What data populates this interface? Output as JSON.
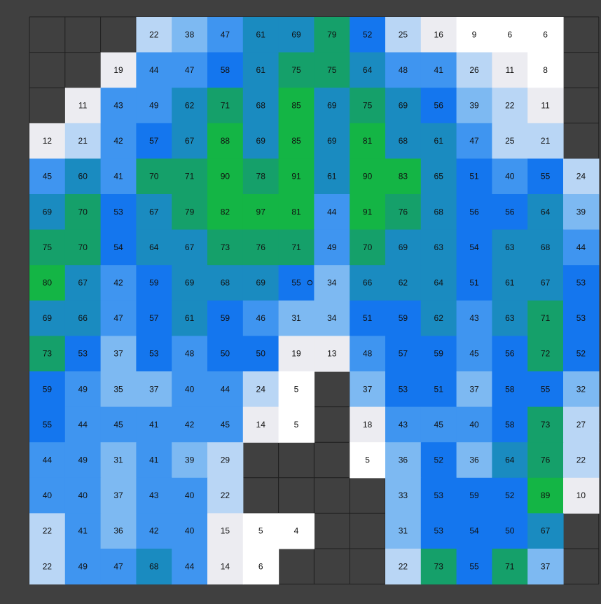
{
  "colors": {
    "background": "#404040",
    "grid_line": "#1e1e1e",
    "band_0": "#ffffff",
    "band_1": "#ececf1",
    "band_2": "#b9d6f5",
    "band_3": "#7db9f2",
    "band_4": "#3f95f0",
    "band_5": "#1476ee",
    "band_6": "#1a8bc0",
    "band_7": "#15a06a",
    "band_8": "#14b545",
    "label": "#111111"
  },
  "marker": {
    "symbol": "o",
    "row": 7,
    "after_col": 8
  },
  "chart_data": {
    "type": "heatmap",
    "title": "",
    "rows": 16,
    "cols": 16,
    "thresholds": [
      0,
      10,
      20,
      30,
      40,
      50,
      60,
      70,
      80,
      90
    ],
    "grid": [
      [
        null,
        null,
        null,
        22,
        38,
        47,
        61,
        69,
        79,
        52,
        25,
        16,
        9,
        6,
        6,
        null
      ],
      [
        null,
        null,
        19,
        44,
        47,
        58,
        61,
        75,
        75,
        64,
        48,
        41,
        26,
        11,
        8,
        null
      ],
      [
        null,
        11,
        43,
        49,
        62,
        71,
        68,
        85,
        69,
        75,
        69,
        56,
        39,
        22,
        11,
        null
      ],
      [
        12,
        21,
        42,
        57,
        67,
        88,
        69,
        85,
        69,
        81,
        68,
        61,
        47,
        25,
        21,
        null
      ],
      [
        45,
        60,
        41,
        70,
        71,
        90,
        78,
        91,
        61,
        90,
        83,
        65,
        51,
        40,
        55,
        24
      ],
      [
        69,
        70,
        53,
        67,
        79,
        82,
        97,
        81,
        44,
        91,
        76,
        68,
        56,
        56,
        64,
        39
      ],
      [
        75,
        70,
        54,
        64,
        67,
        73,
        76,
        71,
        49,
        70,
        69,
        63,
        54,
        63,
        68,
        44
      ],
      [
        80,
        67,
        42,
        59,
        69,
        68,
        69,
        55,
        34,
        66,
        62,
        64,
        51,
        61,
        67,
        53
      ],
      [
        69,
        66,
        47,
        57,
        61,
        59,
        46,
        31,
        34,
        51,
        59,
        62,
        43,
        63,
        71,
        53
      ],
      [
        73,
        53,
        37,
        53,
        48,
        50,
        50,
        19,
        13,
        48,
        57,
        59,
        45,
        56,
        72,
        52
      ],
      [
        59,
        49,
        35,
        37,
        40,
        44,
        24,
        5,
        null,
        37,
        53,
        51,
        37,
        58,
        55,
        32
      ],
      [
        55,
        44,
        45,
        41,
        42,
        45,
        14,
        5,
        null,
        18,
        43,
        45,
        40,
        58,
        73,
        27
      ],
      [
        44,
        49,
        31,
        41,
        39,
        29,
        null,
        null,
        null,
        5,
        36,
        52,
        36,
        64,
        76,
        22
      ],
      [
        40,
        40,
        37,
        43,
        40,
        22,
        null,
        null,
        null,
        null,
        33,
        53,
        59,
        52,
        89,
        10
      ],
      [
        22,
        41,
        36,
        42,
        40,
        15,
        5,
        4,
        null,
        null,
        31,
        53,
        54,
        50,
        67,
        null
      ],
      [
        22,
        49,
        47,
        68,
        44,
        14,
        6,
        null,
        null,
        null,
        22,
        73,
        55,
        71,
        37,
        null
      ]
    ]
  }
}
